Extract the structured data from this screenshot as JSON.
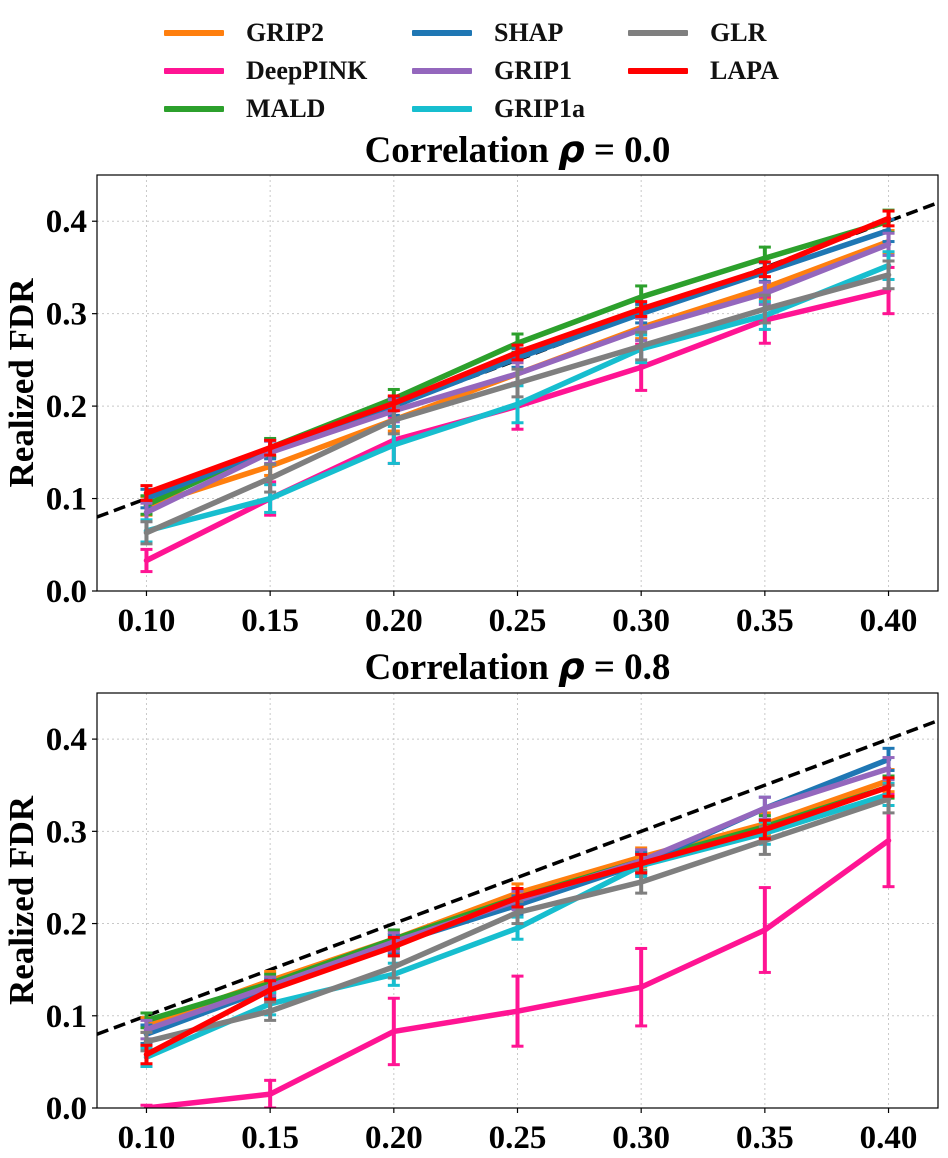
{
  "chart_data": [
    {
      "type": "line",
      "title_prefix": "Correlation",
      "title_symbol": "ρ",
      "title_suffix": "= 0.0",
      "xlabel": "",
      "ylabel": "Realized FDR",
      "x": [
        0.1,
        0.15,
        0.2,
        0.25,
        0.3,
        0.35,
        0.4
      ],
      "xticklabels": [
        "0.10",
        "0.15",
        "0.20",
        "0.25",
        "0.30",
        "0.35",
        "0.40"
      ],
      "yticks": [
        0.0,
        0.1,
        0.2,
        0.3,
        0.4
      ],
      "yticklabels": [
        "0.0",
        "0.1",
        "0.2",
        "0.3",
        "0.4"
      ],
      "xlim": [
        0.08,
        0.42
      ],
      "ylim": [
        0.0,
        0.45
      ],
      "grid": true,
      "reference_line": "y = x (dashed)",
      "series": [
        {
          "name": "GRIP2",
          "color": "#ff7f0e",
          "values": [
            0.092,
            0.135,
            0.185,
            0.235,
            0.285,
            0.328,
            0.378
          ],
          "errors": [
            0.01,
            0.01,
            0.012,
            0.012,
            0.012,
            0.012,
            0.012
          ]
        },
        {
          "name": "DeepPINK",
          "color": "#ff1493",
          "values": [
            0.033,
            0.1,
            0.163,
            0.2,
            0.242,
            0.293,
            0.325
          ],
          "errors": [
            0.012,
            0.018,
            0.025,
            0.025,
            0.025,
            0.025,
            0.025
          ]
        },
        {
          "name": "MALD",
          "color": "#2ca02c",
          "values": [
            0.093,
            0.155,
            0.208,
            0.268,
            0.318,
            0.36,
            0.4
          ],
          "errors": [
            0.01,
            0.01,
            0.01,
            0.01,
            0.012,
            0.012,
            0.012
          ]
        },
        {
          "name": "SHAP",
          "color": "#1f77b4",
          "values": [
            0.1,
            0.153,
            0.2,
            0.252,
            0.3,
            0.345,
            0.39
          ],
          "errors": [
            0.01,
            0.01,
            0.01,
            0.01,
            0.01,
            0.01,
            0.012
          ]
        },
        {
          "name": "GRIP1",
          "color": "#9467bd",
          "values": [
            0.085,
            0.15,
            0.195,
            0.235,
            0.283,
            0.322,
            0.375
          ],
          "errors": [
            0.01,
            0.012,
            0.012,
            0.012,
            0.012,
            0.012,
            0.012
          ]
        },
        {
          "name": "GRIP1a",
          "color": "#17becf",
          "values": [
            0.065,
            0.1,
            0.158,
            0.202,
            0.262,
            0.298,
            0.352
          ],
          "errors": [
            0.012,
            0.015,
            0.02,
            0.02,
            0.015,
            0.015,
            0.015
          ]
        },
        {
          "name": "GLR",
          "color": "#7f7f7f",
          "values": [
            0.063,
            0.122,
            0.185,
            0.225,
            0.265,
            0.305,
            0.342
          ],
          "errors": [
            0.012,
            0.015,
            0.015,
            0.015,
            0.015,
            0.015,
            0.015
          ]
        },
        {
          "name": "LAPA",
          "color": "#ff0000",
          "values": [
            0.106,
            0.155,
            0.203,
            0.258,
            0.305,
            0.348,
            0.403
          ],
          "errors": [
            0.008,
            0.008,
            0.008,
            0.008,
            0.008,
            0.008,
            0.008
          ]
        }
      ]
    },
    {
      "type": "line",
      "title_prefix": "Correlation",
      "title_symbol": "ρ",
      "title_suffix": "= 0.8",
      "xlabel": "",
      "ylabel": "Realized FDR",
      "x": [
        0.1,
        0.15,
        0.2,
        0.25,
        0.3,
        0.35,
        0.4
      ],
      "xticklabels": [
        "0.10",
        "0.15",
        "0.20",
        "0.25",
        "0.30",
        "0.35",
        "0.40"
      ],
      "yticks": [
        0.0,
        0.1,
        0.2,
        0.3,
        0.4
      ],
      "yticklabels": [
        "0.0",
        "0.1",
        "0.2",
        "0.3",
        "0.4"
      ],
      "xlim": [
        0.08,
        0.42
      ],
      "ylim": [
        0.0,
        0.45
      ],
      "grid": true,
      "reference_line": "y = x (dashed)",
      "series": [
        {
          "name": "GRIP2",
          "color": "#ff7f0e",
          "values": [
            0.09,
            0.138,
            0.183,
            0.233,
            0.272,
            0.308,
            0.355
          ],
          "errors": [
            0.008,
            0.01,
            0.01,
            0.01,
            0.01,
            0.012,
            0.012
          ]
        },
        {
          "name": "DeepPINK",
          "color": "#ff1493",
          "values": [
            0.0,
            0.015,
            0.083,
            0.105,
            0.131,
            0.193,
            0.29
          ],
          "errors": [
            0.003,
            0.015,
            0.036,
            0.038,
            0.042,
            0.046,
            0.05
          ]
        },
        {
          "name": "MALD",
          "color": "#2ca02c",
          "values": [
            0.095,
            0.135,
            0.183,
            0.228,
            0.268,
            0.305,
            0.348
          ],
          "errors": [
            0.008,
            0.01,
            0.01,
            0.01,
            0.01,
            0.012,
            0.012
          ]
        },
        {
          "name": "SHAP",
          "color": "#1f77b4",
          "values": [
            0.08,
            0.13,
            0.178,
            0.22,
            0.265,
            0.325,
            0.378
          ],
          "errors": [
            0.01,
            0.01,
            0.01,
            0.01,
            0.012,
            0.012,
            0.012
          ]
        },
        {
          "name": "GRIP1",
          "color": "#9467bd",
          "values": [
            0.085,
            0.132,
            0.18,
            0.225,
            0.268,
            0.325,
            0.368
          ],
          "errors": [
            0.01,
            0.01,
            0.01,
            0.01,
            0.012,
            0.012,
            0.012
          ]
        },
        {
          "name": "GRIP1a",
          "color": "#17becf",
          "values": [
            0.055,
            0.113,
            0.145,
            0.195,
            0.263,
            0.298,
            0.34
          ],
          "errors": [
            0.01,
            0.012,
            0.012,
            0.012,
            0.012,
            0.012,
            0.012
          ]
        },
        {
          "name": "GLR",
          "color": "#7f7f7f",
          "values": [
            0.072,
            0.105,
            0.153,
            0.212,
            0.245,
            0.29,
            0.335
          ],
          "errors": [
            0.01,
            0.01,
            0.012,
            0.012,
            0.012,
            0.015,
            0.015
          ]
        },
        {
          "name": "LAPA",
          "color": "#ff0000",
          "values": [
            0.058,
            0.128,
            0.175,
            0.228,
            0.265,
            0.302,
            0.348
          ],
          "errors": [
            0.01,
            0.01,
            0.01,
            0.01,
            0.01,
            0.01,
            0.01
          ]
        }
      ]
    }
  ],
  "legend": {
    "placement": "top-center",
    "items": [
      {
        "name": "GRIP2",
        "color": "#ff7f0e"
      },
      {
        "name": "DeepPINK",
        "color": "#ff1493"
      },
      {
        "name": "MALD",
        "color": "#2ca02c"
      },
      {
        "name": "SHAP",
        "color": "#1f77b4"
      },
      {
        "name": "GRIP1",
        "color": "#9467bd"
      },
      {
        "name": "GRIP1a",
        "color": "#17becf"
      },
      {
        "name": "GLR",
        "color": "#7f7f7f"
      },
      {
        "name": "LAPA",
        "color": "#ff0000"
      }
    ]
  }
}
